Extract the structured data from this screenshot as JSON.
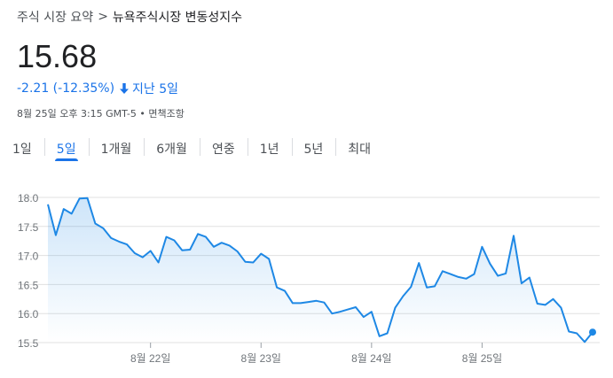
{
  "breadcrumb": {
    "parent": "주식 시장 요약",
    "separator": ">",
    "current": "뉴욕주식시장 변동성지수"
  },
  "quote": {
    "price": "15.68",
    "change": "-2.21 (-12.35%)",
    "direction_icon": "arrow-down-icon",
    "period": "지난 5일",
    "timestamp": "8월 25일 오후 3:15 GMT-5 • 면책조항"
  },
  "tabs": [
    {
      "label": "1일",
      "active": false
    },
    {
      "label": "5일",
      "active": true
    },
    {
      "label": "1개월",
      "active": false
    },
    {
      "label": "6개월",
      "active": false
    },
    {
      "label": "연중",
      "active": false
    },
    {
      "label": "1년",
      "active": false
    },
    {
      "label": "5년",
      "active": false
    },
    {
      "label": "최대",
      "active": false
    }
  ],
  "colors": {
    "accent": "#1a73e8",
    "line": "#1e88e5",
    "grid": "#e0e0e0"
  },
  "chart_data": {
    "type": "area",
    "ylim": [
      15.5,
      18.0
    ],
    "yticks": [
      "18.0",
      "17.5",
      "17.0",
      "16.5",
      "16.0",
      "15.5"
    ],
    "xticks": [
      {
        "label": "8월 22일",
        "index": 13
      },
      {
        "label": "8월 23일",
        "index": 27
      },
      {
        "label": "8월 24일",
        "index": 41
      },
      {
        "label": "8월 25일",
        "index": 55
      }
    ],
    "values": [
      17.88,
      17.35,
      17.8,
      17.72,
      17.98,
      17.99,
      17.55,
      17.47,
      17.3,
      17.24,
      17.19,
      17.04,
      16.97,
      17.08,
      16.88,
      17.32,
      17.26,
      17.09,
      17.1,
      17.37,
      17.32,
      17.15,
      17.22,
      17.17,
      17.07,
      16.89,
      16.88,
      17.03,
      16.94,
      16.45,
      16.39,
      16.18,
      16.18,
      16.2,
      16.22,
      16.19,
      16.0,
      16.03,
      16.07,
      16.11,
      15.94,
      16.03,
      15.61,
      15.66,
      16.1,
      16.3,
      16.46,
      16.87,
      16.45,
      16.47,
      16.73,
      16.68,
      16.63,
      16.6,
      16.68,
      17.15,
      16.86,
      16.65,
      16.69,
      17.34,
      16.52,
      16.62,
      16.17,
      16.15,
      16.25,
      16.1,
      15.69,
      15.66,
      15.51,
      15.68
    ]
  }
}
